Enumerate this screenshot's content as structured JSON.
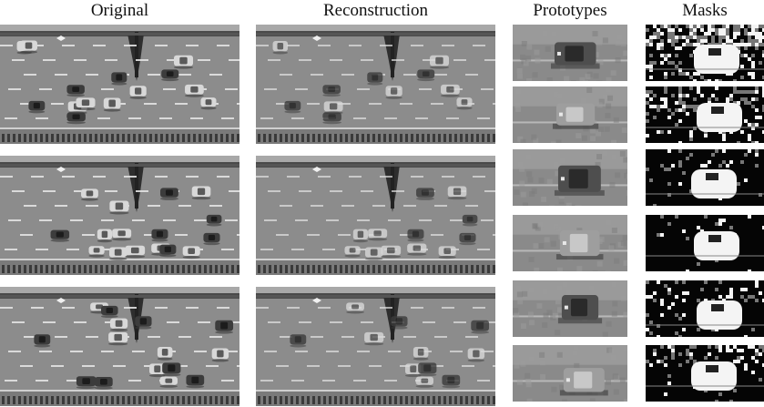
{
  "headers": {
    "original": "Original",
    "reconstruction": "Reconstruction",
    "prototypes": "Prototypes",
    "masks": "Masks"
  },
  "colors": {
    "road": "#8c8c8c",
    "road_dark": "#6e6e6e",
    "divider": "#4a4a4a",
    "car_light": "#d8d8d8",
    "car_dark": "#3c3c3c",
    "mask_bg": "#050505",
    "mask_fg": "#f4f4f4"
  }
}
